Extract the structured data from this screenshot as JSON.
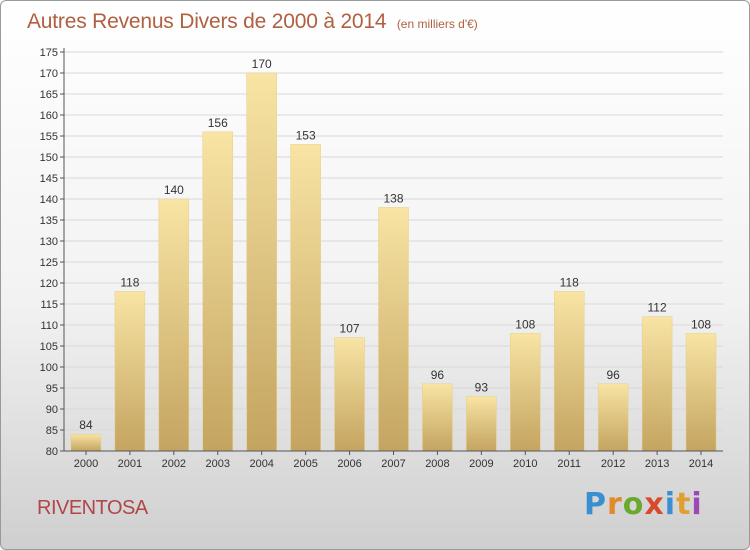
{
  "title": "Autres Revenus Divers de 2000 à 2014",
  "unit": "(en milliers d'€)",
  "commune": "RIVENTOSA",
  "logo": {
    "text": "Proxiti",
    "letter_colors": [
      "#3a8fd0",
      "#e08a2a",
      "#6aa830",
      "#d84a2a",
      "#3a8fd0",
      "#e0a030",
      "#9a4ab0"
    ]
  },
  "colors": {
    "bar_top": "#f8e4a4",
    "bar_bottom": "#c4a460",
    "grid": "#d8d8d8",
    "title": "#b06040",
    "commune": "#b0464a"
  },
  "chart_data": {
    "type": "bar",
    "categories": [
      "2000",
      "2001",
      "2002",
      "2003",
      "2004",
      "2005",
      "2006",
      "2007",
      "2008",
      "2009",
      "2010",
      "2011",
      "2012",
      "2013",
      "2014"
    ],
    "values": [
      84,
      118,
      140,
      156,
      170,
      153,
      107,
      138,
      96,
      93,
      108,
      118,
      96,
      112,
      108
    ],
    "ylim": [
      80,
      175
    ],
    "yticks": [
      80,
      85,
      90,
      95,
      100,
      105,
      110,
      115,
      120,
      125,
      130,
      135,
      140,
      145,
      150,
      155,
      160,
      165,
      170,
      175
    ],
    "grid": true,
    "legend": "none"
  }
}
